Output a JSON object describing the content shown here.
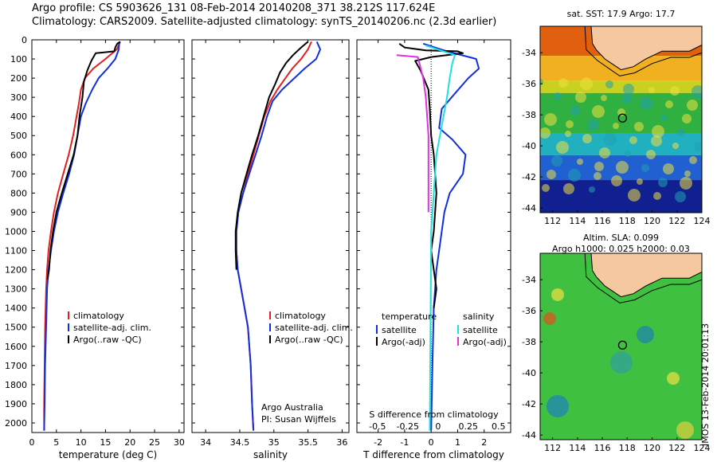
{
  "header": {
    "line1": "Argo profile: CS 5903626_131 08-Feb-2014 20140208_371 38.212S 117.624E",
    "line2": "Climatology: CARS2009. Satellite-adjusted climatology: synTS_20140206.nc (2.3d earlier)"
  },
  "stamp": "IMOS 13-Feb-2014 20:01:13",
  "colors": {
    "climatology": "#e02020",
    "satellite": "#1030e0",
    "argo": "#000000",
    "salinity_sat": "#20e0e0",
    "salinity_argo": "#e030e0",
    "land": "#f6c8a0"
  },
  "chart_data": [
    {
      "type": "line",
      "id": "temp",
      "xlabel": "temperature (deg C)",
      "ylabel": "",
      "xlim": [
        0,
        31
      ],
      "ylim": [
        2050,
        0
      ],
      "xticks": [
        "0",
        "5",
        "10",
        "15",
        "20",
        "25",
        "30"
      ],
      "xtick_values": [
        0,
        5,
        10,
        15,
        20,
        25,
        30
      ],
      "yticks": [
        "0",
        "100",
        "200",
        "300",
        "400",
        "500",
        "600",
        "700",
        "800",
        "900",
        "1000",
        "1100",
        "1200",
        "1300",
        "1400",
        "1500",
        "1600",
        "1700",
        "1800",
        "1900",
        "2000"
      ],
      "ytick_values": [
        0,
        100,
        200,
        300,
        400,
        500,
        600,
        700,
        800,
        900,
        1000,
        1100,
        1200,
        1300,
        1400,
        1500,
        1600,
        1700,
        1800,
        1900,
        2000
      ],
      "legend": [
        "climatology",
        "satellite-adj. clim.",
        "Argo(..raw -QC)"
      ],
      "series": [
        {
          "name": "climatology",
          "color": "#e02020",
          "x": [
            18.0,
            17.3,
            15.0,
            12.5,
            10.8,
            10.0,
            9.6,
            9.1,
            8.4,
            7.5,
            6.4,
            5.3,
            4.5,
            3.9,
            3.4,
            3.1,
            2.9,
            2.7,
            2.6,
            2.5,
            2.5
          ],
          "y": [
            10,
            50,
            100,
            150,
            200,
            260,
            330,
            400,
            500,
            600,
            700,
            800,
            900,
            1000,
            1100,
            1200,
            1300,
            1500,
            1700,
            1900,
            2040
          ]
        },
        {
          "name": "satellite-adj. clim.",
          "color": "#1030e0",
          "x": [
            17.8,
            17.7,
            17.0,
            15.4,
            13.6,
            12.3,
            11.0,
            10.0,
            9.3,
            8.6,
            7.6,
            6.4,
            5.3,
            4.5,
            3.9,
            3.4,
            3.1,
            2.9,
            2.7,
            2.6,
            2.5
          ],
          "y": [
            10,
            50,
            100,
            150,
            200,
            260,
            330,
            400,
            500,
            600,
            700,
            800,
            900,
            1000,
            1100,
            1200,
            1300,
            1500,
            1700,
            1900,
            2040
          ]
        },
        {
          "name": "Argo(..raw -QC)",
          "color": "#000000",
          "x": [
            18.0,
            17.4,
            17.0,
            16.8,
            13.0,
            12.1,
            11.3,
            10.6,
            10.3,
            9.7,
            9.3,
            8.5,
            7.3,
            6.1,
            5.0,
            4.3,
            3.8,
            3.5,
            3.2
          ],
          "y": [
            10,
            20,
            40,
            60,
            70,
            110,
            160,
            220,
            300,
            400,
            500,
            600,
            700,
            800,
            900,
            1000,
            1100,
            1200,
            1250
          ]
        }
      ]
    },
    {
      "type": "line",
      "id": "sal",
      "xlabel": "salinity",
      "ylabel": "",
      "xlim": [
        33.8,
        36.1
      ],
      "ylim": [
        2050,
        0
      ],
      "xticks": [
        "34",
        "34.5",
        "35",
        "35.5",
        "36"
      ],
      "xtick_values": [
        34,
        34.5,
        35,
        35.5,
        36
      ],
      "legend": [
        "climatology",
        "satellite-adj. clim.",
        "Argo(..raw -QC)"
      ],
      "annotations": [
        "Argo Australia",
        "PI: Susan Wijffels"
      ],
      "series": [
        {
          "name": "climatology",
          "color": "#e02020",
          "x": [
            35.55,
            35.5,
            35.4,
            35.27,
            35.17,
            35.05,
            34.95,
            34.86,
            34.78,
            34.7,
            34.62,
            34.55,
            34.48,
            34.45,
            34.45,
            34.47,
            34.52,
            34.57,
            34.62,
            34.66,
            34.68,
            34.7
          ],
          "y": [
            10,
            50,
            100,
            150,
            200,
            260,
            320,
            400,
            500,
            600,
            700,
            800,
            900,
            1000,
            1100,
            1200,
            1300,
            1400,
            1500,
            1700,
            1900,
            2040
          ]
        },
        {
          "name": "satellite-adj. clim.",
          "color": "#1030e0",
          "x": [
            35.63,
            35.68,
            35.62,
            35.45,
            35.3,
            35.12,
            34.98,
            34.9,
            34.82,
            34.73,
            34.64,
            34.55,
            34.48,
            34.45,
            34.45,
            34.47,
            34.52,
            34.57,
            34.62,
            34.66,
            34.68,
            34.7
          ],
          "y": [
            10,
            50,
            100,
            150,
            200,
            260,
            320,
            400,
            500,
            600,
            700,
            800,
            900,
            1000,
            1100,
            1200,
            1300,
            1400,
            1500,
            1700,
            1900,
            2040
          ]
        },
        {
          "name": "Argo(..raw -QC)",
          "color": "#000000",
          "x": [
            35.5,
            35.4,
            35.28,
            35.18,
            35.09,
            35.02,
            34.93,
            34.85,
            34.77,
            34.68,
            34.6,
            34.52,
            34.47,
            34.44,
            34.44,
            34.45
          ],
          "y": [
            10,
            40,
            80,
            120,
            170,
            230,
            300,
            400,
            500,
            600,
            700,
            800,
            900,
            1000,
            1100,
            1200
          ]
        }
      ]
    },
    {
      "type": "line",
      "id": "diff",
      "xlabel": "T difference from climatology",
      "ylabel": "",
      "top_label": "S difference from climatology",
      "xlim": [
        -2.8,
        3.0
      ],
      "ylim": [
        2050,
        0
      ],
      "xticks": [
        "-2",
        "-1",
        "0",
        "1",
        "2"
      ],
      "xtick_values": [
        -2,
        -1,
        0,
        1,
        2
      ],
      "top_xticks": [
        "-0.5",
        "-0.25",
        "0",
        "0.25",
        "0.5"
      ],
      "top_xtick_values": [
        -0.5,
        -0.25,
        0,
        0.25,
        0.5
      ],
      "legend_titles": [
        "temperature",
        "salinity"
      ],
      "legend": [
        "satellite",
        "Argo(-adj)",
        "satellite",
        "Argo(-adj)"
      ],
      "series": [
        {
          "name": "temperature satellite",
          "color": "#1030e0",
          "x": [
            -0.3,
            0.6,
            1.7,
            1.8,
            1.4,
            0.9,
            0.4,
            0.3,
            0.8,
            1.3,
            1.2,
            0.7,
            0.5,
            0.4,
            0.3,
            0.2,
            0.1,
            0.05,
            0.0
          ],
          "y": [
            20,
            60,
            100,
            150,
            200,
            280,
            360,
            460,
            520,
            600,
            700,
            800,
            900,
            1000,
            1100,
            1200,
            1400,
            1700,
            2040
          ]
        },
        {
          "name": "temperature Argo(-adj)",
          "color": "#000000",
          "x": [
            -1.2,
            -1.0,
            -0.2,
            1.0,
            1.2,
            0.0,
            -0.6,
            -0.4,
            -0.1,
            -0.05,
            0.0,
            0.1,
            0.2,
            0.1,
            0.0,
            0.1,
            0.2,
            0.1
          ],
          "y": [
            20,
            40,
            55,
            60,
            70,
            90,
            110,
            160,
            260,
            360,
            500,
            600,
            800,
            1000,
            1100,
            1200,
            1300,
            1400
          ]
        },
        {
          "name": "salinity satellite",
          "color": "#20e0e0",
          "x": [
            -0.2,
            0.9,
            0.8,
            0.7,
            0.6,
            0.2,
            0.0,
            -0.05
          ],
          "y": [
            30,
            80,
            120,
            200,
            300,
            600,
            1000,
            2040
          ]
        },
        {
          "name": "salinity Argo(-adj)",
          "color": "#e030e0",
          "x": [
            -1.3,
            -0.5,
            -0.3,
            -0.2,
            -0.1,
            -0.1,
            -0.1
          ],
          "y": [
            80,
            90,
            200,
            300,
            500,
            700,
            900
          ]
        }
      ]
    },
    {
      "type": "heatmap",
      "id": "sst",
      "title": "sat. SST: 17.9  Argo: 17.7",
      "xlim": [
        111,
        124
      ],
      "ylim": [
        -44.3,
        -32.3
      ],
      "xticks": [
        "112",
        "114",
        "116",
        "118",
        "120",
        "122",
        "124"
      ],
      "xtick_values": [
        112,
        114,
        116,
        118,
        120,
        122,
        124
      ],
      "yticks": [
        "-34",
        "-36",
        "-38",
        "-40",
        "-42",
        "-44"
      ],
      "ytick_values": [
        -34,
        -36,
        -38,
        -40,
        -42,
        -44
      ],
      "marker": {
        "lon": 117.624,
        "lat": -38.212
      },
      "bands": [
        {
          "lat": [
            -32.3,
            -34.2
          ],
          "color": "#e06010"
        },
        {
          "lat": [
            -34.2,
            -35.8
          ],
          "color": "#f0b020"
        },
        {
          "lat": [
            -35.8,
            -36.6
          ],
          "color": "#c8d020"
        },
        {
          "lat": [
            -36.6,
            -39.2
          ],
          "color": "#30b040"
        },
        {
          "lat": [
            -39.2,
            -40.6
          ],
          "color": "#20b0c0"
        },
        {
          "lat": [
            -40.6,
            -42.2
          ],
          "color": "#2060d0"
        },
        {
          "lat": [
            -42.2,
            -44.3
          ],
          "color": "#102090"
        }
      ]
    },
    {
      "type": "heatmap",
      "id": "sla",
      "title": "Altim. SLA: 0.099",
      "subtitle": "Argo h1000: 0.025 h2000: 0.03",
      "xlim": [
        111,
        124
      ],
      "ylim": [
        -44.3,
        -32.3
      ],
      "xticks": [
        "112",
        "114",
        "116",
        "118",
        "120",
        "122",
        "124"
      ],
      "xtick_values": [
        112,
        114,
        116,
        118,
        120,
        122,
        124
      ],
      "yticks": [
        "-34",
        "-36",
        "-38",
        "-40",
        "-42",
        "-44"
      ],
      "ytick_values": [
        -34,
        -36,
        -38,
        -40,
        -42,
        -44
      ],
      "marker": {
        "lon": 117.624,
        "lat": -38.212
      },
      "background": "#40c040"
    }
  ]
}
